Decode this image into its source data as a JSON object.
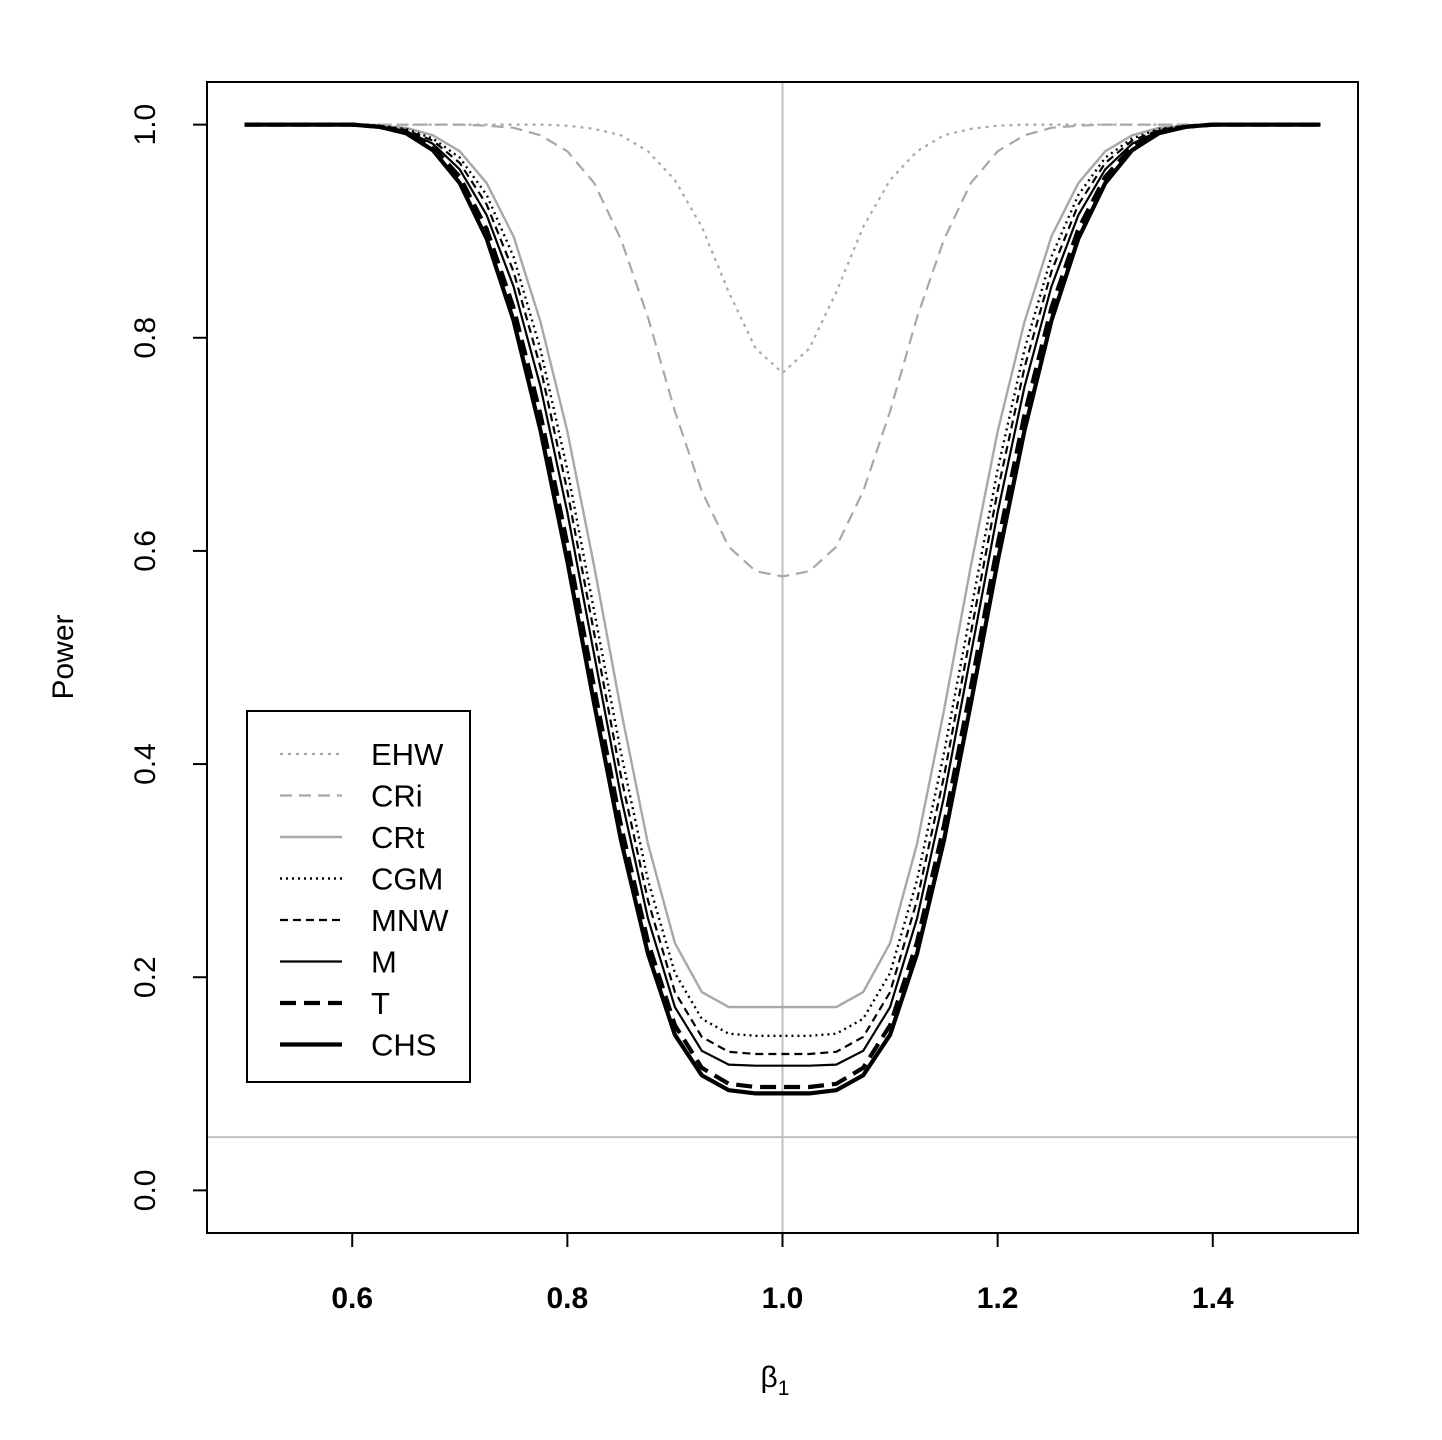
{
  "chart_data": {
    "type": "line",
    "title": "",
    "xlabel": "β",
    "xlabel_subscript": "1",
    "ylabel": "Power",
    "xlim": [
      0.465,
      1.535
    ],
    "ylim": [
      -0.04,
      1.04
    ],
    "x_ticks": [
      {
        "value": 0.6,
        "label": "0.6"
      },
      {
        "value": 0.8,
        "label": "0.8"
      },
      {
        "value": 1.0,
        "label": "1.0"
      },
      {
        "value": 1.2,
        "label": "1.2"
      },
      {
        "value": 1.4,
        "label": "1.4"
      }
    ],
    "y_ticks": [
      {
        "value": 0.0,
        "label": "0.0"
      },
      {
        "value": 0.2,
        "label": "0.2"
      },
      {
        "value": 0.4,
        "label": "0.4"
      },
      {
        "value": 0.6,
        "label": "0.6"
      },
      {
        "value": 0.8,
        "label": "0.8"
      },
      {
        "value": 1.0,
        "label": "1.0"
      }
    ],
    "reference_lines": {
      "vertical_x": 1.0,
      "horizontal_y": 0.05,
      "color": "#c0c0c0"
    },
    "grid": false,
    "legend_position": "bottom-left",
    "x": [
      0.5,
      0.525,
      0.55,
      0.575,
      0.6,
      0.625,
      0.65,
      0.675,
      0.7,
      0.725,
      0.75,
      0.775,
      0.8,
      0.825,
      0.85,
      0.875,
      0.9,
      0.925,
      0.95,
      0.975,
      1.0,
      1.025,
      1.05,
      1.075,
      1.1,
      1.125,
      1.15,
      1.175,
      1.2,
      1.225,
      1.25,
      1.275,
      1.3,
      1.325,
      1.35,
      1.375,
      1.4,
      1.425,
      1.45,
      1.475,
      1.5
    ],
    "series": [
      {
        "name": "EHW",
        "color": "#a8a8a8",
        "dash": "3,5",
        "width": 2.2,
        "values": [
          1.0,
          1.0,
          1.0,
          1.0,
          1.0,
          1.0,
          1.0,
          1.0,
          1.0,
          1.0,
          1.0,
          1.0,
          0.999,
          0.996,
          0.99,
          0.975,
          0.948,
          0.904,
          0.843,
          0.79,
          0.767,
          0.79,
          0.843,
          0.904,
          0.948,
          0.975,
          0.99,
          0.996,
          0.999,
          1.0,
          1.0,
          1.0,
          1.0,
          1.0,
          1.0,
          1.0,
          1.0,
          1.0,
          1.0,
          1.0,
          1.0
        ]
      },
      {
        "name": "CRi",
        "color": "#a8a8a8",
        "dash": "12,7",
        "width": 2.2,
        "values": [
          1.0,
          1.0,
          1.0,
          1.0,
          1.0,
          1.0,
          1.0,
          1.0,
          1.0,
          0.999,
          0.997,
          0.99,
          0.975,
          0.945,
          0.892,
          0.819,
          0.731,
          0.656,
          0.604,
          0.581,
          0.576,
          0.581,
          0.604,
          0.656,
          0.731,
          0.819,
          0.892,
          0.945,
          0.975,
          0.99,
          0.997,
          0.999,
          1.0,
          1.0,
          1.0,
          1.0,
          1.0,
          1.0,
          1.0,
          1.0,
          1.0
        ]
      },
      {
        "name": "CRt",
        "color": "#a8a8a8",
        "dash": "",
        "width": 2.4,
        "values": [
          1.0,
          1.0,
          1.0,
          1.0,
          1.0,
          0.999,
          0.997,
          0.99,
          0.975,
          0.945,
          0.895,
          0.815,
          0.712,
          0.585,
          0.45,
          0.325,
          0.232,
          0.186,
          0.172,
          0.172,
          0.172,
          0.172,
          0.172,
          0.186,
          0.232,
          0.325,
          0.45,
          0.585,
          0.712,
          0.815,
          0.895,
          0.945,
          0.975,
          0.99,
          0.997,
          0.999,
          1.0,
          1.0,
          1.0,
          1.0,
          1.0
        ]
      },
      {
        "name": "CGM",
        "color": "#000000",
        "dash": "2,4",
        "width": 2.4,
        "values": [
          1.0,
          1.0,
          1.0,
          1.0,
          1.0,
          0.999,
          0.996,
          0.987,
          0.969,
          0.934,
          0.876,
          0.789,
          0.676,
          0.543,
          0.41,
          0.291,
          0.204,
          0.161,
          0.147,
          0.145,
          0.145,
          0.145,
          0.147,
          0.161,
          0.204,
          0.291,
          0.41,
          0.543,
          0.676,
          0.789,
          0.876,
          0.934,
          0.969,
          0.987,
          0.996,
          0.999,
          1.0,
          1.0,
          1.0,
          1.0,
          1.0
        ]
      },
      {
        "name": "MNW",
        "color": "#000000",
        "dash": "8,5",
        "width": 2.2,
        "values": [
          1.0,
          1.0,
          1.0,
          1.0,
          1.0,
          0.999,
          0.995,
          0.985,
          0.964,
          0.925,
          0.862,
          0.772,
          0.656,
          0.522,
          0.388,
          0.272,
          0.186,
          0.144,
          0.13,
          0.128,
          0.128,
          0.128,
          0.13,
          0.144,
          0.186,
          0.272,
          0.388,
          0.522,
          0.656,
          0.772,
          0.862,
          0.925,
          0.964,
          0.985,
          0.995,
          0.999,
          1.0,
          1.0,
          1.0,
          1.0,
          1.0
        ]
      },
      {
        "name": "M",
        "color": "#000000",
        "dash": "",
        "width": 2.2,
        "values": [
          1.0,
          1.0,
          1.0,
          1.0,
          1.0,
          0.998,
          0.994,
          0.982,
          0.958,
          0.915,
          0.848,
          0.754,
          0.636,
          0.502,
          0.369,
          0.255,
          0.172,
          0.131,
          0.118,
          0.117,
          0.117,
          0.117,
          0.118,
          0.131,
          0.172,
          0.255,
          0.369,
          0.502,
          0.636,
          0.754,
          0.848,
          0.915,
          0.958,
          0.982,
          0.994,
          0.998,
          1.0,
          1.0,
          1.0,
          1.0,
          1.0
        ]
      },
      {
        "name": "T",
        "color": "#000000",
        "dash": "16,8",
        "width": 4.2,
        "values": [
          1.0,
          1.0,
          1.0,
          1.0,
          1.0,
          0.998,
          0.993,
          0.979,
          0.951,
          0.902,
          0.828,
          0.728,
          0.606,
          0.471,
          0.342,
          0.233,
          0.155,
          0.115,
          0.1,
          0.097,
          0.097,
          0.097,
          0.1,
          0.115,
          0.155,
          0.233,
          0.342,
          0.471,
          0.606,
          0.728,
          0.828,
          0.902,
          0.951,
          0.979,
          0.993,
          0.998,
          1.0,
          1.0,
          1.0,
          1.0,
          1.0
        ]
      },
      {
        "name": "CHS",
        "color": "#000000",
        "dash": "",
        "width": 4.2,
        "values": [
          1.0,
          1.0,
          1.0,
          1.0,
          1.0,
          0.998,
          0.992,
          0.976,
          0.945,
          0.893,
          0.816,
          0.713,
          0.59,
          0.456,
          0.328,
          0.222,
          0.146,
          0.108,
          0.094,
          0.091,
          0.091,
          0.091,
          0.094,
          0.108,
          0.146,
          0.222,
          0.328,
          0.456,
          0.59,
          0.713,
          0.816,
          0.893,
          0.945,
          0.976,
          0.992,
          0.998,
          1.0,
          1.0,
          1.0,
          1.0,
          1.0
        ]
      }
    ]
  }
}
